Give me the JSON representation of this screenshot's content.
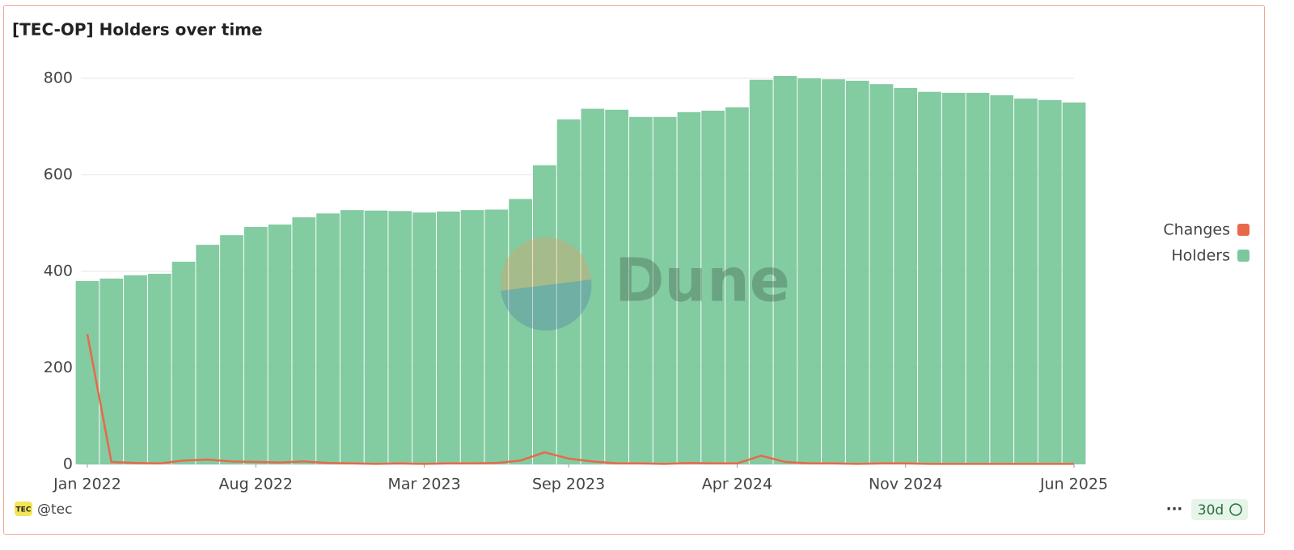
{
  "chart_data": {
    "type": "bar-line",
    "title": "[TEC-OP] Holders over time",
    "watermark": "Dune",
    "x": [
      "2022-01",
      "2022-02",
      "2022-03",
      "2022-04",
      "2022-05",
      "2022-06",
      "2022-07",
      "2022-08",
      "2022-09",
      "2022-10",
      "2022-11",
      "2022-12",
      "2023-01",
      "2023-02",
      "2023-03",
      "2023-04",
      "2023-05",
      "2023-06",
      "2023-07",
      "2023-08",
      "2023-09",
      "2023-10",
      "2023-11",
      "2023-12",
      "2024-01",
      "2024-02",
      "2024-03",
      "2024-04",
      "2024-05",
      "2024-06",
      "2024-07",
      "2024-08",
      "2024-09",
      "2024-10",
      "2024-11",
      "2024-12",
      "2025-01",
      "2025-02",
      "2025-03",
      "2025-04",
      "2025-05",
      "2025-06"
    ],
    "series": [
      {
        "name": "Changes",
        "type": "line",
        "color": "#e8694a",
        "values": [
          270,
          5,
          3,
          2,
          8,
          10,
          6,
          5,
          4,
          6,
          3,
          2,
          1,
          2,
          1,
          2,
          2,
          3,
          8,
          25,
          12,
          6,
          2,
          2,
          1,
          3,
          2,
          2,
          18,
          5,
          2,
          2,
          1,
          2,
          2,
          1,
          1,
          1,
          1,
          1,
          1,
          1
        ]
      },
      {
        "name": "Holders",
        "type": "bar",
        "color": "#7cc89c",
        "values": [
          380,
          385,
          392,
          395,
          420,
          455,
          475,
          492,
          497,
          512,
          520,
          527,
          526,
          525,
          522,
          524,
          527,
          528,
          550,
          620,
          715,
          737,
          735,
          720,
          720,
          730,
          733,
          740,
          797,
          805,
          800,
          798,
          795,
          788,
          780,
          772,
          770,
          770,
          765,
          758,
          755,
          750
        ]
      }
    ],
    "xlim": [
      "2022-01",
      "2025-06"
    ],
    "xticks": [
      {
        "value": "2022-01",
        "label": "Jan 2022"
      },
      {
        "value": "2022-08",
        "label": "Aug 2022"
      },
      {
        "value": "2023-03",
        "label": "Mar 2023"
      },
      {
        "value": "2023-09",
        "label": "Sep 2023"
      },
      {
        "value": "2024-04",
        "label": "Apr 2024"
      },
      {
        "value": "2024-11",
        "label": "Nov 2024"
      },
      {
        "value": "2025-06",
        "label": "Jun 2025"
      }
    ],
    "ylim": [
      0,
      800
    ],
    "yticks": [
      0,
      200,
      400,
      600,
      800
    ],
    "grid": true,
    "legend": "right"
  },
  "footer": {
    "logo": "TEC",
    "author": "@tec",
    "refresh": "30d"
  }
}
